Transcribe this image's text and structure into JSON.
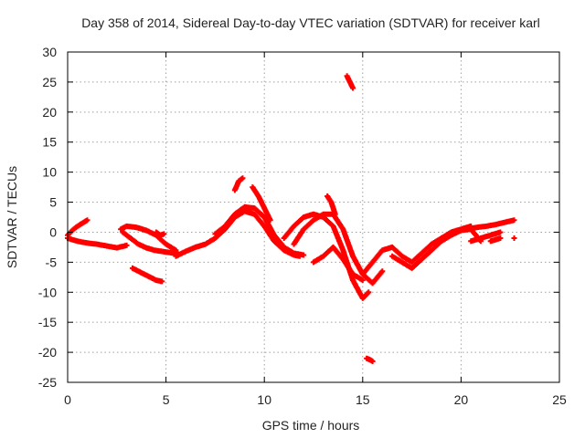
{
  "chart_data": {
    "type": "scatter",
    "title": "Day 358 of 2014, Sidereal Day-to-day VTEC variation (SDTVAR) for receiver karl",
    "xlabel": "GPS time / hours",
    "ylabel": "SDTVAR / TECUs",
    "xlim": [
      0,
      25
    ],
    "ylim": [
      -25,
      30
    ],
    "xticks": [
      0,
      5,
      10,
      15,
      20,
      25
    ],
    "yticks": [
      -25,
      -20,
      -15,
      -10,
      -5,
      0,
      5,
      10,
      15,
      20,
      25,
      30
    ],
    "grid": true,
    "marker": "+",
    "series": [
      {
        "name": "SDTVAR",
        "color": "#ff0000",
        "tracks": [
          {
            "x": [
              0.0,
              0.5,
              1.0,
              1.5,
              2.0,
              2.5,
              3.0
            ],
            "y": [
              -1.0,
              -1.5,
              -1.8,
              -2.0,
              -2.3,
              -2.6,
              -2.2
            ]
          },
          {
            "x": [
              0.0,
              0.3,
              0.6,
              1.0
            ],
            "y": [
              -0.5,
              0.5,
              1.2,
              2.0
            ]
          },
          {
            "x": [
              2.7,
              3.0,
              3.5,
              4.0,
              4.5,
              5.0,
              5.5
            ],
            "y": [
              0.5,
              1.0,
              0.8,
              0.3,
              -0.5,
              -2.0,
              -3.0
            ]
          },
          {
            "x": [
              2.8,
              3.2,
              3.6,
              4.0,
              4.4,
              4.8,
              5.2,
              5.6
            ],
            "y": [
              0.0,
              -1.0,
              -2.0,
              -2.6,
              -3.0,
              -3.2,
              -3.4,
              -3.6
            ]
          },
          {
            "x": [
              4.5,
              4.7,
              4.9
            ],
            "y": [
              0.0,
              -0.5,
              -0.3
            ]
          },
          {
            "x": [
              3.3,
              3.6,
              3.9,
              4.2,
              4.5,
              4.8
            ],
            "y": [
              -6.0,
              -6.5,
              -7.0,
              -7.5,
              -8.0,
              -8.2
            ]
          },
          {
            "x": [
              5.5,
              6.0,
              6.5,
              7.0,
              7.5,
              8.0,
              8.5,
              9.0,
              9.5,
              10.0,
              10.5,
              11.0,
              11.5,
              11.8
            ],
            "y": [
              -4.0,
              -3.2,
              -2.5,
              -2.0,
              -1.0,
              0.5,
              2.5,
              3.5,
              3.0,
              1.0,
              -1.5,
              -3.0,
              -3.8,
              -4.0
            ]
          },
          {
            "x": [
              7.5,
              8.0,
              8.5,
              9.0,
              9.5,
              10.0,
              10.5,
              11.0,
              11.5,
              12.0
            ],
            "y": [
              -0.3,
              1.0,
              3.0,
              4.2,
              4.0,
              2.5,
              -0.5,
              -2.5,
              -3.5,
              -3.8
            ]
          },
          {
            "x": [
              8.5,
              8.7,
              8.9
            ],
            "y": [
              7.0,
              8.5,
              9.0
            ]
          },
          {
            "x": [
              9.4,
              9.7,
              10.0,
              10.3
            ],
            "y": [
              7.5,
              6.0,
              4.0,
              2.0
            ]
          },
          {
            "x": [
              11.0,
              11.5,
              12.0,
              12.5,
              13.0,
              13.5,
              14.0,
              14.5,
              15.0,
              15.3
            ],
            "y": [
              -1.0,
              1.0,
              2.5,
              3.0,
              2.5,
              1.0,
              -3.0,
              -8.0,
              -11.0,
              -10.0
            ]
          },
          {
            "x": [
              11.5,
              12.0,
              12.5,
              13.0,
              13.5,
              14.0,
              14.5,
              15.0,
              15.5,
              16.0
            ],
            "y": [
              -2.0,
              0.5,
              2.0,
              3.0,
              3.0,
              0.5,
              -4.0,
              -7.0,
              -8.5,
              -6.5
            ]
          },
          {
            "x": [
              12.5,
              13.0,
              13.5,
              14.0,
              14.5,
              15.0
            ],
            "y": [
              -5.0,
              -4.0,
              -2.5,
              -4.5,
              -7.0,
              -8.0
            ]
          },
          {
            "x": [
              13.2,
              13.4,
              13.6
            ],
            "y": [
              6.0,
              5.0,
              3.0
            ]
          },
          {
            "x": [
              14.2,
              14.35,
              14.5
            ],
            "y": [
              26.0,
              25.0,
              24.0
            ]
          },
          {
            "x": [
              15.2,
              15.35,
              15.5
            ],
            "y": [
              -21.0,
              -21.2,
              -21.5
            ]
          },
          {
            "x": [
              15.0,
              15.5,
              16.0,
              16.5,
              17.0,
              17.5,
              18.0,
              18.5,
              19.0,
              19.5,
              20.0,
              20.5
            ],
            "y": [
              -7.0,
              -5.0,
              -3.0,
              -2.5,
              -4.0,
              -5.0,
              -3.5,
              -2.0,
              -1.0,
              0.0,
              0.5,
              1.0
            ]
          },
          {
            "x": [
              16.5,
              17.0,
              17.5,
              18.0,
              18.5,
              19.0,
              19.5,
              20.0,
              20.5,
              21.0
            ],
            "y": [
              -4.0,
              -5.0,
              -6.0,
              -4.5,
              -3.0,
              -1.5,
              -0.5,
              0.3,
              0.5,
              -1.5
            ]
          },
          {
            "x": [
              20.3,
              20.8,
              21.3,
              21.8,
              22.3,
              22.7
            ],
            "y": [
              0.5,
              0.8,
              1.0,
              1.3,
              1.7,
              2.0
            ]
          },
          {
            "x": [
              20.5,
              21.0,
              21.5,
              22.0
            ],
            "y": [
              -1.5,
              -1.0,
              -0.5,
              0.0
            ]
          },
          {
            "x": [
              21.5,
              22.0
            ],
            "y": [
              -1.5,
              -1.0
            ]
          },
          {
            "x": [
              22.7
            ],
            "y": [
              -1.0
            ]
          }
        ]
      }
    ]
  }
}
